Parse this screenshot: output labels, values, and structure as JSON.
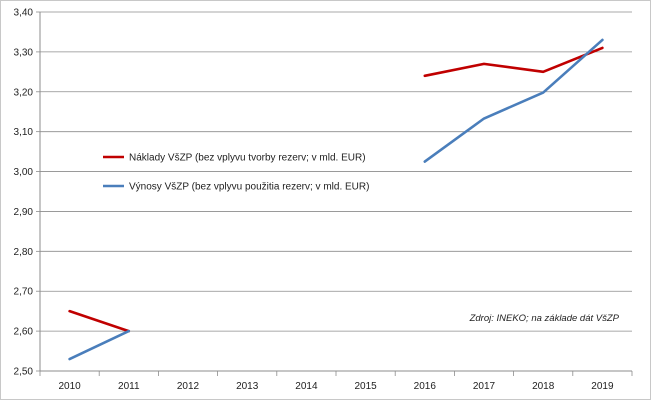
{
  "chart_data": {
    "type": "line",
    "categories": [
      "2010",
      "2011",
      "2012",
      "2013",
      "2014",
      "2015",
      "2016",
      "2017",
      "2018",
      "2019"
    ],
    "ylim": [
      2.5,
      3.4
    ],
    "yticks": [
      "2,50",
      "2,60",
      "2,70",
      "2,80",
      "2,90",
      "3,00",
      "3,10",
      "3,20",
      "3,30",
      "3,40"
    ],
    "grid": "horizontal",
    "legend_position": "center-left",
    "series": [
      {
        "name": "Náklady VšZP (bez vplyvu tvorby rezerv; v mld. EUR)",
        "color": "#c00000",
        "values": [
          2.65,
          2.6,
          null,
          null,
          null,
          null,
          3.24,
          3.27,
          3.25,
          3.31
        ]
      },
      {
        "name": "Výnosy VšZP (bez vplyvu použitia rezerv; v mld. EUR)",
        "color": "#4a7ebb",
        "values": [
          2.53,
          2.6,
          null,
          null,
          null,
          null,
          3.025,
          3.133,
          3.198,
          3.33
        ]
      }
    ],
    "annotations": [
      "Zdroj: INEKO; na základe dát VšZP"
    ]
  }
}
